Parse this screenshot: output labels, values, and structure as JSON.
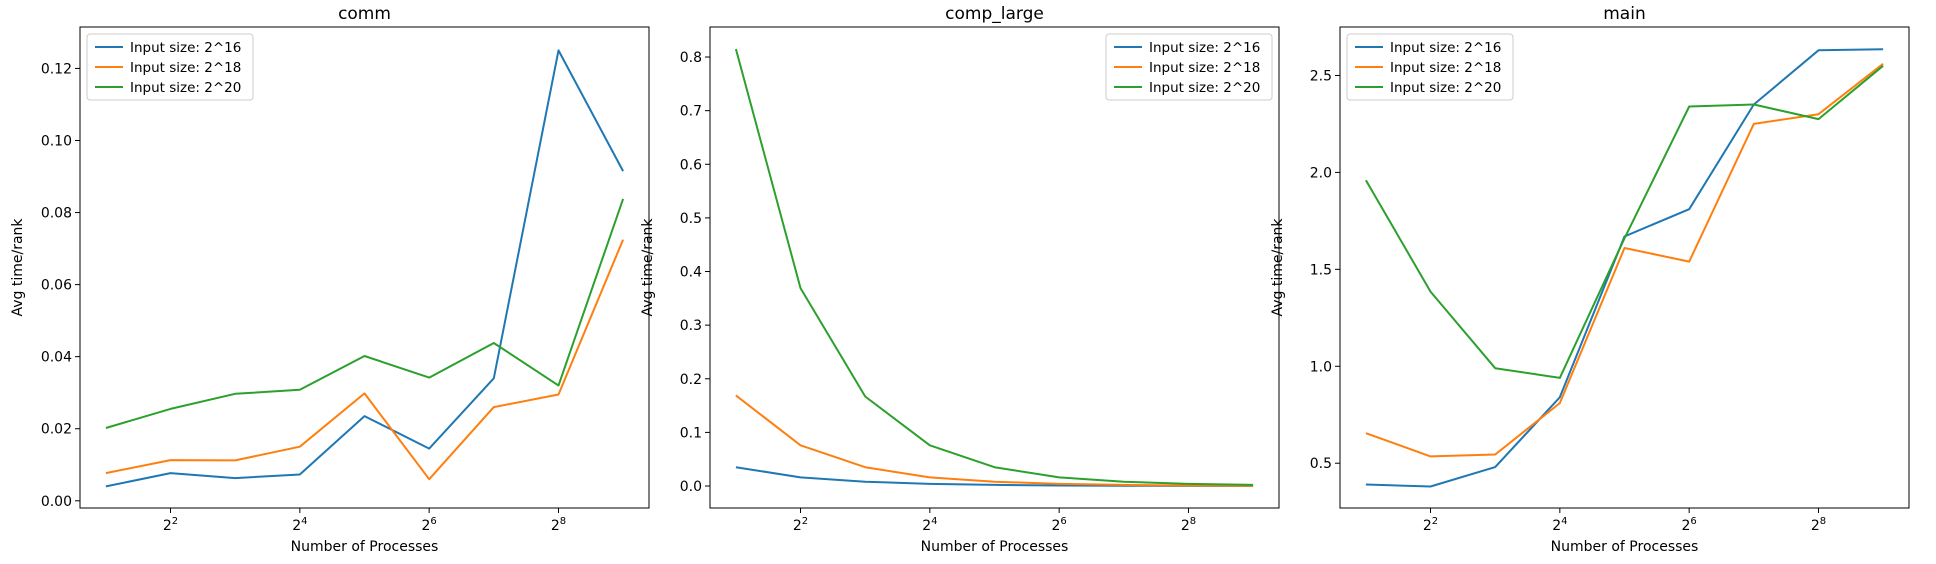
{
  "chart_data": [
    {
      "type": "line",
      "title": "comm",
      "xlabel": "Number of Processes",
      "ylabel": "Avg time/rank",
      "x_scale": "log2",
      "x": [
        2,
        4,
        8,
        16,
        32,
        64,
        128,
        256,
        512
      ],
      "x_ticks": [
        4,
        16,
        64,
        256
      ],
      "x_tick_labels": [
        "2^2",
        "2^4",
        "2^6",
        "2^8"
      ],
      "ylim": [
        -0.002,
        0.1315
      ],
      "y_ticks": [
        0.0,
        0.02,
        0.04,
        0.06,
        0.08,
        0.1,
        0.12
      ],
      "y_tick_labels": [
        "0.00",
        "0.02",
        "0.04",
        "0.06",
        "0.08",
        "0.10",
        "0.12"
      ],
      "legend_loc": "upper left",
      "series": [
        {
          "name": "Input size: 2^16",
          "color": "#1f77b4",
          "values": [
            0.004,
            0.0077,
            0.0063,
            0.0073,
            0.0235,
            0.0145,
            0.034,
            0.125,
            0.0915
          ]
        },
        {
          "name": "Input size: 2^18",
          "color": "#ff7f0e",
          "values": [
            0.0077,
            0.0113,
            0.0112,
            0.015,
            0.0298,
            0.006,
            0.026,
            0.0295,
            0.0725
          ]
        },
        {
          "name": "Input size: 2^20",
          "color": "#2ca02c",
          "values": [
            0.0202,
            0.0255,
            0.0297,
            0.0308,
            0.0402,
            0.0342,
            0.0438,
            0.032,
            0.0838
          ]
        }
      ]
    },
    {
      "type": "line",
      "title": "comp_large",
      "xlabel": "Number of Processes",
      "ylabel": "Avg time/rank",
      "x_scale": "log2",
      "x": [
        2,
        4,
        8,
        16,
        32,
        64,
        128,
        256,
        512
      ],
      "x_ticks": [
        4,
        16,
        64,
        256
      ],
      "x_tick_labels": [
        "2^2",
        "2^4",
        "2^6",
        "2^8"
      ],
      "ylim": [
        -0.041,
        0.856
      ],
      "y_ticks": [
        0.0,
        0.1,
        0.2,
        0.3,
        0.4,
        0.5,
        0.6,
        0.7,
        0.8
      ],
      "y_tick_labels": [
        "0.0",
        "0.1",
        "0.2",
        "0.3",
        "0.4",
        "0.5",
        "0.6",
        "0.7",
        "0.8"
      ],
      "legend_loc": "upper right",
      "series": [
        {
          "name": "Input size: 2^16",
          "color": "#1f77b4",
          "values": [
            0.035,
            0.016,
            0.008,
            0.004,
            0.002,
            0.001,
            0.0005,
            0.0003,
            0.0002
          ]
        },
        {
          "name": "Input size: 2^18",
          "color": "#ff7f0e",
          "values": [
            0.169,
            0.076,
            0.035,
            0.016,
            0.008,
            0.004,
            0.002,
            0.001,
            0.0005
          ]
        },
        {
          "name": "Input size: 2^20",
          "color": "#2ca02c",
          "values": [
            0.815,
            0.369,
            0.167,
            0.076,
            0.035,
            0.016,
            0.008,
            0.004,
            0.002
          ]
        }
      ]
    },
    {
      "type": "line",
      "title": "main",
      "xlabel": "Number of Processes",
      "ylabel": "Avg time/rank",
      "x_scale": "log2",
      "x": [
        2,
        4,
        8,
        16,
        32,
        64,
        128,
        256,
        512
      ],
      "x_ticks": [
        4,
        16,
        64,
        256
      ],
      "x_tick_labels": [
        "2^2",
        "2^4",
        "2^6",
        "2^8"
      ],
      "ylim": [
        0.269,
        2.75
      ],
      "y_ticks": [
        0.5,
        1.0,
        1.5,
        2.0,
        2.5
      ],
      "y_tick_labels": [
        "0.5",
        "1.0",
        "1.5",
        "2.0",
        "2.5"
      ],
      "legend_loc": "upper left",
      "series": [
        {
          "name": "Input size: 2^16",
          "color": "#1f77b4",
          "values": [
            0.39,
            0.38,
            0.48,
            0.84,
            1.67,
            1.81,
            2.35,
            2.63,
            2.635
          ]
        },
        {
          "name": "Input size: 2^18",
          "color": "#ff7f0e",
          "values": [
            0.655,
            0.535,
            0.545,
            0.81,
            1.61,
            1.54,
            2.25,
            2.3,
            2.56
          ]
        },
        {
          "name": "Input size: 2^20",
          "color": "#2ca02c",
          "values": [
            1.96,
            1.385,
            0.99,
            0.94,
            1.66,
            2.34,
            2.35,
            2.275,
            2.55
          ]
        }
      ]
    }
  ]
}
